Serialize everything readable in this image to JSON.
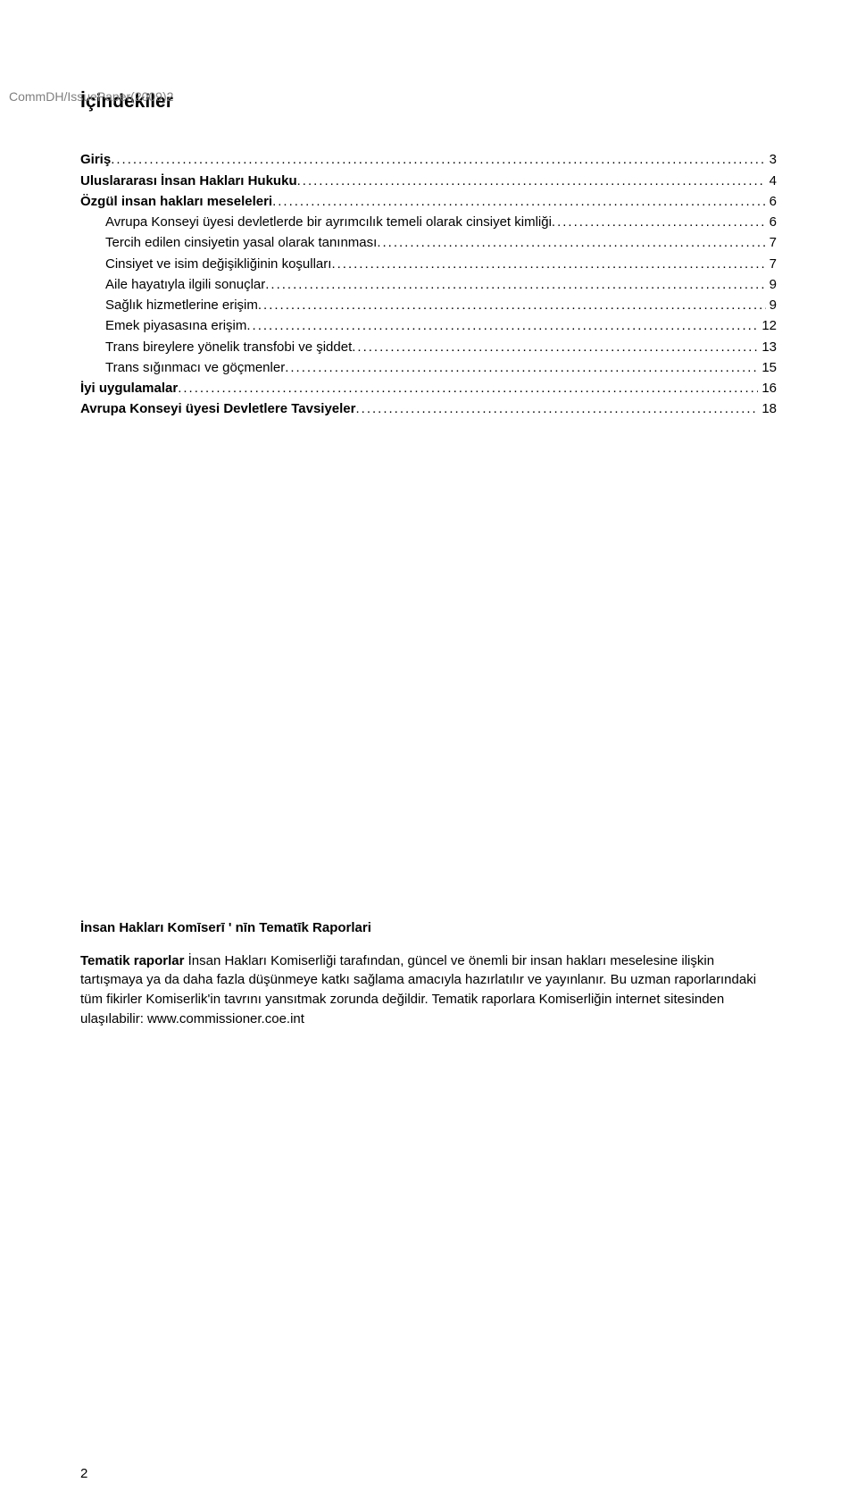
{
  "header_code": "CommDH/IssuePaper(2009)2",
  "toc_title": "İçindekiler",
  "toc": [
    {
      "label": "Giriş",
      "page": "3",
      "bold": true,
      "indent": false
    },
    {
      "label": "Uluslararası İnsan Hakları Hukuku",
      "page": "4",
      "bold": true,
      "indent": false
    },
    {
      "label": "Özgül insan hakları meseleleri",
      "page": "6",
      "bold": true,
      "indent": false
    },
    {
      "label": "Avrupa Konseyi üyesi devletlerde bir ayrımcılık temeli olarak cinsiyet kimliği",
      "page": "6",
      "bold": false,
      "indent": true
    },
    {
      "label": "Tercih edilen cinsiyetin yasal olarak tanınması",
      "page": "7",
      "bold": false,
      "indent": true
    },
    {
      "label": "Cinsiyet ve isim değişikliğinin koşulları",
      "page": "7",
      "bold": false,
      "indent": true
    },
    {
      "label": "Aile hayatıyla ilgili sonuçlar",
      "page": "9",
      "bold": false,
      "indent": true
    },
    {
      "label": "Sağlık hizmetlerine erişim",
      "page": "9",
      "bold": false,
      "indent": true
    },
    {
      "label": "Emek piyasasına erişim",
      "page": "12",
      "bold": false,
      "indent": true
    },
    {
      "label": "Trans bireylere yönelik transfobi ve şiddet",
      "page": "13",
      "bold": false,
      "indent": true
    },
    {
      "label": "Trans sığınmacı ve göçmenler",
      "page": "15",
      "bold": false,
      "indent": true
    },
    {
      "label": "İyi uygulamalar",
      "page": "16",
      "bold": true,
      "indent": false
    },
    {
      "label": "Avrupa Konseyi üyesi Devletlere Tavsiyeler",
      "page": "18",
      "bold": true,
      "indent": false
    }
  ],
  "lower_title": "İnsan Hakları Komīserī ' nīn Tematīk Raporlari",
  "paragraph_lead": "Tematik raporlar",
  "paragraph_body": " İnsan Hakları Komiserliği tarafından, güncel ve önemli bir insan hakları meselesine ilişkin tartışmaya ya da daha fazla düşünmeye katkı sağlama amacıyla hazırlatılır ve yayınlanır. Bu uzman raporlarındaki tüm fikirler Komiserlik'in tavrını yansıtmak zorunda değildir. Tematik raporlara Komiserliğin internet sitesinden ulaşılabilir: www.commissioner.coe.int",
  "footer_page": "2"
}
